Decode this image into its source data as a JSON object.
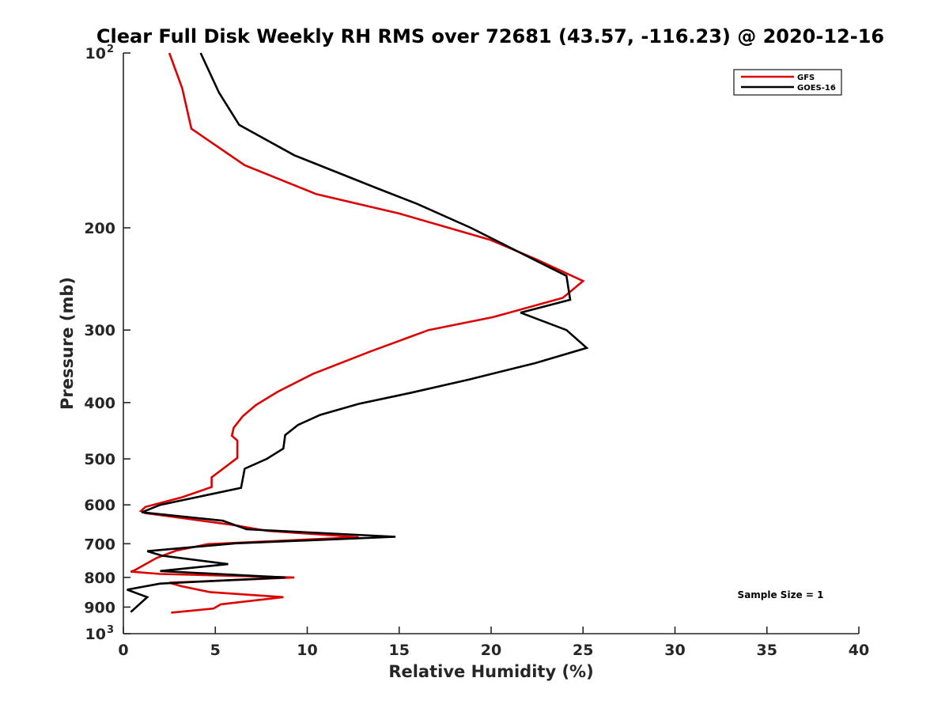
{
  "chart_data": {
    "type": "line",
    "title": "Clear Full Disk Weekly RH RMS over 72681 (43.57, -116.23) @ 2020-12-16",
    "xlabel": "Relative Humidity (%)",
    "ylabel": "Pressure (mb)",
    "xlim": [
      0,
      40
    ],
    "ylim": [
      1000,
      100
    ],
    "y_scale": "log",
    "y_reversed": true,
    "grid": false,
    "legend_position": "top-right",
    "x_ticks": [
      "0",
      "5",
      "10",
      "15",
      "20",
      "25",
      "30",
      "35",
      "40"
    ],
    "x_tick_values": [
      0,
      5,
      10,
      15,
      20,
      25,
      30,
      35,
      40
    ],
    "y_ticks": [
      {
        "value": 100,
        "base": "10",
        "exp": "2"
      },
      {
        "value": 200,
        "base": "200",
        "exp": ""
      },
      {
        "value": 300,
        "base": "300",
        "exp": ""
      },
      {
        "value": 400,
        "base": "400",
        "exp": ""
      },
      {
        "value": 500,
        "base": "500",
        "exp": ""
      },
      {
        "value": 600,
        "base": "600",
        "exp": ""
      },
      {
        "value": 700,
        "base": "700",
        "exp": ""
      },
      {
        "value": 800,
        "base": "800",
        "exp": ""
      },
      {
        "value": 900,
        "base": "900",
        "exp": ""
      },
      {
        "value": 1000,
        "base": "10",
        "exp": "3"
      }
    ],
    "series": [
      {
        "name": "GFS",
        "color": "#dd0000",
        "points": [
          [
            2.5,
            100
          ],
          [
            3.2,
            115
          ],
          [
            3.7,
            135
          ],
          [
            6.6,
            156
          ],
          [
            10.5,
            175
          ],
          [
            15.0,
            189
          ],
          [
            20.0,
            210
          ],
          [
            22.5,
            227
          ],
          [
            25.0,
            247
          ],
          [
            23.9,
            264
          ],
          [
            20.1,
            285
          ],
          [
            16.6,
            300
          ],
          [
            13.5,
            326
          ],
          [
            10.3,
            357
          ],
          [
            8.4,
            383
          ],
          [
            7.2,
            404
          ],
          [
            6.5,
            422
          ],
          [
            6.0,
            442
          ],
          [
            5.9,
            456
          ],
          [
            6.2,
            465
          ],
          [
            6.2,
            486
          ],
          [
            6.2,
            498
          ],
          [
            4.8,
            538
          ],
          [
            4.8,
            559
          ],
          [
            3.2,
            582
          ],
          [
            1.2,
            605
          ],
          [
            0.95,
            615
          ],
          [
            1.2,
            620
          ],
          [
            6.0,
            650
          ],
          [
            7.8,
            665
          ],
          [
            12.8,
            682
          ],
          [
            4.6,
            701
          ],
          [
            2.9,
            719
          ],
          [
            1.8,
            741
          ],
          [
            0.6,
            778
          ],
          [
            0.4,
            782
          ],
          [
            2.0,
            789
          ],
          [
            9.3,
            800
          ],
          [
            2.5,
            817
          ],
          [
            3.2,
            829
          ],
          [
            4.7,
            848
          ],
          [
            8.7,
            865
          ],
          [
            5.3,
            890
          ],
          [
            4.9,
            905
          ],
          [
            2.6,
            920
          ]
        ]
      },
      {
        "name": "GOES-16",
        "color": "#000000",
        "points": [
          [
            4.2,
            100
          ],
          [
            5.2,
            117
          ],
          [
            6.3,
            133
          ],
          [
            9.3,
            150
          ],
          [
            13.8,
            171
          ],
          [
            16.0,
            182
          ],
          [
            18.9,
            200
          ],
          [
            22.1,
            225
          ],
          [
            24.1,
            242
          ],
          [
            24.3,
            266
          ],
          [
            21.6,
            280
          ],
          [
            24.1,
            300
          ],
          [
            25.2,
            322
          ],
          [
            22.4,
            342
          ],
          [
            18.8,
            365
          ],
          [
            15.6,
            385
          ],
          [
            12.8,
            402
          ],
          [
            10.7,
            420
          ],
          [
            9.5,
            437
          ],
          [
            8.8,
            455
          ],
          [
            8.7,
            480
          ],
          [
            7.8,
            500
          ],
          [
            6.6,
            520
          ],
          [
            6.4,
            561
          ],
          [
            2.0,
            600
          ],
          [
            1.0,
            618
          ],
          [
            5.4,
            639
          ],
          [
            6.7,
            661
          ],
          [
            14.8,
            681
          ],
          [
            6.1,
            699
          ],
          [
            1.3,
            721
          ],
          [
            2.1,
            734
          ],
          [
            5.7,
            759
          ],
          [
            2.0,
            780
          ],
          [
            8.8,
            800
          ],
          [
            2.0,
            820
          ],
          [
            0.2,
            840
          ],
          [
            1.3,
            865
          ],
          [
            0.4,
            918
          ]
        ]
      }
    ],
    "annotations": [
      {
        "text": "Sample Size = 1",
        "x": 33.4,
        "y": 890
      }
    ]
  }
}
